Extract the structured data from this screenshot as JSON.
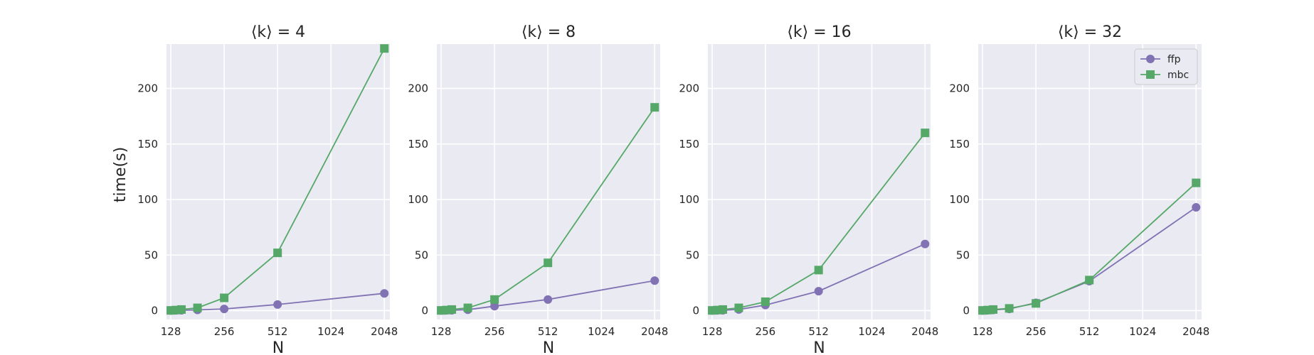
{
  "chart_data": [
    {
      "type": "line",
      "title": "⟨k⟩ = 4",
      "xlabel": "N",
      "ylabel": "time(s)",
      "xscale": "log2",
      "xlim": [
        121,
        2200
      ],
      "ylim": [
        -8,
        240
      ],
      "x_ticks": [
        "128",
        "256",
        "512",
        "1024",
        "2048"
      ],
      "y_ticks": [
        "0",
        "50",
        "100",
        "150",
        "200"
      ],
      "grid": true,
      "x": [
        128,
        137,
        147,
        181,
        256,
        512,
        2048
      ],
      "series": [
        {
          "name": "ffp",
          "marker": "circle",
          "color": "#8172b3",
          "values": [
            0.1,
            0.2,
            0.3,
            0.6,
            1.5,
            5.5,
            15.5
          ]
        },
        {
          "name": "mbc",
          "marker": "square",
          "color": "#55a868",
          "values": [
            0.2,
            0.5,
            1.0,
            2.5,
            11.5,
            52.0,
            236.0
          ]
        }
      ]
    },
    {
      "type": "line",
      "title": "⟨k⟩ = 8",
      "xlabel": "N",
      "ylabel": "",
      "xscale": "log2",
      "xlim": [
        121,
        2200
      ],
      "ylim": [
        -8,
        240
      ],
      "x_ticks": [
        "128",
        "256",
        "512",
        "1024",
        "2048"
      ],
      "y_ticks": [
        "0",
        "50",
        "100",
        "150",
        "200"
      ],
      "grid": true,
      "x": [
        128,
        137,
        147,
        181,
        256,
        512,
        2048
      ],
      "series": [
        {
          "name": "ffp",
          "marker": "circle",
          "color": "#8172b3",
          "values": [
            0.1,
            0.2,
            0.3,
            0.8,
            4.0,
            10.0,
            27.0
          ]
        },
        {
          "name": "mbc",
          "marker": "square",
          "color": "#55a868",
          "values": [
            0.2,
            0.5,
            1.0,
            2.5,
            10.0,
            43.0,
            183.0
          ]
        }
      ]
    },
    {
      "type": "line",
      "title": "⟨k⟩ = 16",
      "xlabel": "N",
      "ylabel": "",
      "xscale": "log2",
      "xlim": [
        121,
        2200
      ],
      "ylim": [
        -8,
        240
      ],
      "x_ticks": [
        "128",
        "256",
        "512",
        "1024",
        "2048"
      ],
      "y_ticks": [
        "0",
        "50",
        "100",
        "150",
        "200"
      ],
      "grid": true,
      "x": [
        128,
        137,
        147,
        181,
        256,
        512,
        2048
      ],
      "series": [
        {
          "name": "ffp",
          "marker": "circle",
          "color": "#8172b3",
          "values": [
            0.1,
            0.2,
            0.3,
            1.0,
            5.0,
            17.5,
            60.0
          ]
        },
        {
          "name": "mbc",
          "marker": "square",
          "color": "#55a868",
          "values": [
            0.2,
            0.5,
            1.0,
            2.5,
            8.0,
            36.5,
            160.0
          ]
        }
      ]
    },
    {
      "type": "line",
      "title": "⟨k⟩ = 32",
      "xlabel": "",
      "ylabel": "",
      "xscale": "log2",
      "xlim": [
        121,
        2200
      ],
      "ylim": [
        -8,
        240
      ],
      "x_ticks": [
        "128",
        "256",
        "512",
        "1024",
        "2048"
      ],
      "y_ticks": [
        "0",
        "50",
        "100",
        "150",
        "200"
      ],
      "grid": true,
      "legend": {
        "position": "top-right",
        "entries": [
          "ffp",
          "mbc"
        ]
      },
      "x": [
        128,
        137,
        147,
        181,
        256,
        512,
        2048
      ],
      "series": [
        {
          "name": "ffp",
          "marker": "circle",
          "color": "#8172b3",
          "values": [
            0.1,
            0.3,
            0.6,
            1.5,
            7.0,
            26.5,
            93.0
          ]
        },
        {
          "name": "mbc",
          "marker": "square",
          "color": "#55a868",
          "values": [
            0.2,
            0.5,
            1.0,
            2.0,
            6.5,
            27.5,
            115.0
          ]
        }
      ]
    }
  ]
}
